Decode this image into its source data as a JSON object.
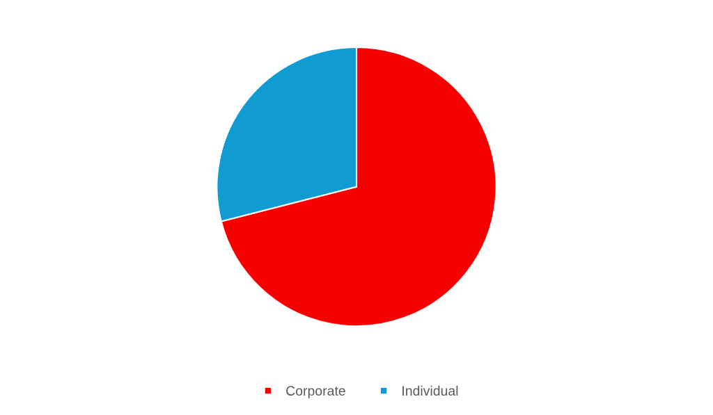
{
  "chart_data": {
    "type": "pie",
    "categories": [
      "Corporate",
      "Individual"
    ],
    "values": [
      71,
      29
    ],
    "colors": [
      "#f80000",
      "#109bd3"
    ],
    "legend": "bottom"
  }
}
